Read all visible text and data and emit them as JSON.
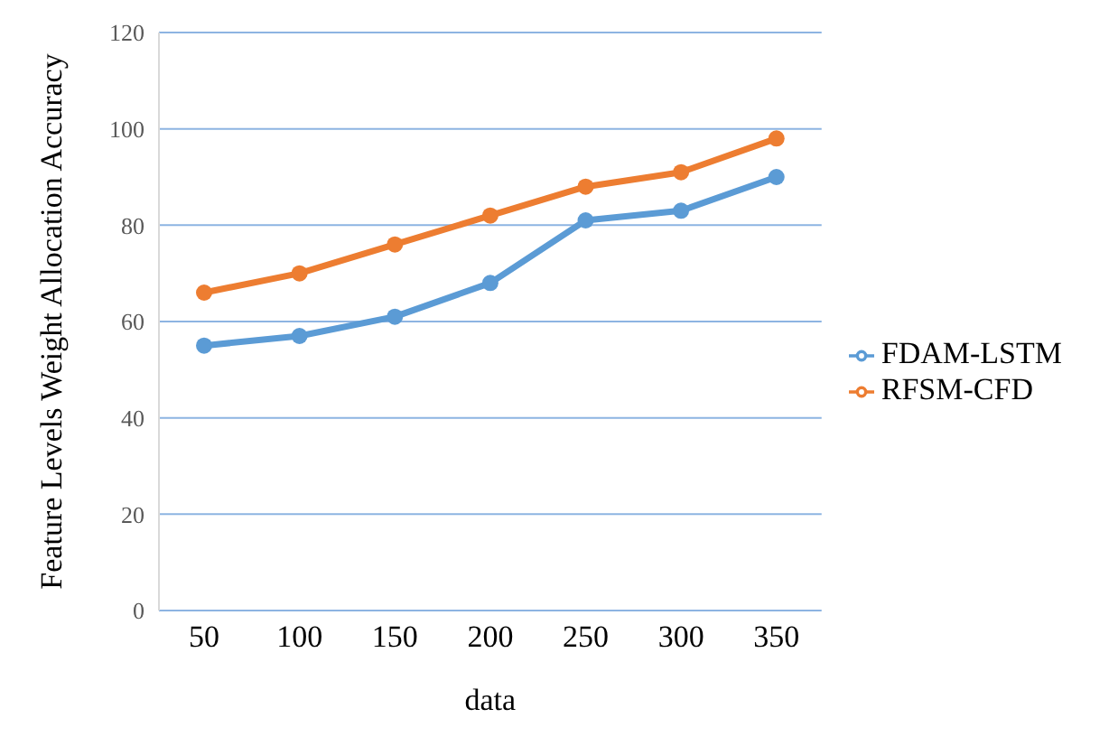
{
  "chart_data": {
    "type": "line",
    "xlabel": "data",
    "ylabel": "Feature Levels Weight Allocation Accuracy",
    "categories": [
      "50",
      "100",
      "150",
      "200",
      "250",
      "300",
      "350"
    ],
    "series": [
      {
        "name": "FDAM-LSTM",
        "color": "#5b9bd5",
        "values": [
          55,
          57,
          61,
          68,
          81,
          83,
          90
        ]
      },
      {
        "name": "RFSM-CFD",
        "color": "#ed7d31",
        "values": [
          66,
          70,
          76,
          82,
          88,
          91,
          98
        ]
      }
    ],
    "ylim": [
      0,
      120
    ],
    "yticks": [
      0,
      20,
      40,
      60,
      80,
      100,
      120
    ],
    "grid": "y",
    "legend": "right",
    "marker": "circle",
    "line_style": "solid"
  }
}
